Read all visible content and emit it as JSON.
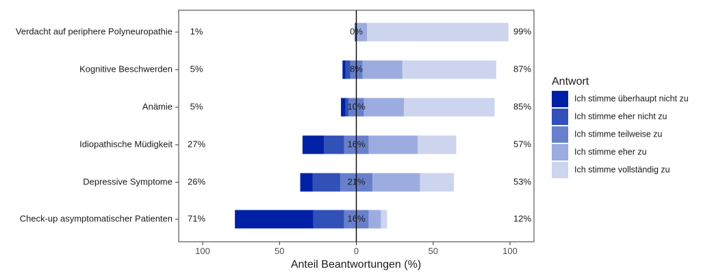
{
  "chart_data": {
    "type": "bar",
    "orientation": "horizontal-diverging",
    "xlabel": "Anteil Beantwortungen (%)",
    "x_ticks": [
      "100",
      "50",
      "0",
      "50",
      "100"
    ],
    "x_tick_values": [
      -100,
      -50,
      0,
      50,
      100
    ],
    "xlim": [
      -115,
      115
    ],
    "legend": {
      "title": "Antwort",
      "position": "right",
      "entries": [
        {
          "name": "Ich stimme überhaupt nicht zu",
          "color": "#0021a5"
        },
        {
          "name": "Ich stimme eher nicht zu",
          "color": "#3151b8"
        },
        {
          "name": "Ich stimme teilweise zu",
          "color": "#6880cc"
        },
        {
          "name": "Ich stimme eher zu",
          "color": "#9dace0"
        },
        {
          "name": "Ich stimme vollständig zu",
          "color": "#ccd4ee"
        }
      ]
    },
    "categories": [
      "Verdacht auf periphere Polyneuropathie",
      "Kognitive Beschwerden",
      "Anämie",
      "Idiopathische Müdigkeit",
      "Depressive Symptome",
      "Check-up asymptomatischer Patienten"
    ],
    "series": [
      {
        "name": "Ich stimme überhaupt nicht zu",
        "values": [
          0,
          2,
          3,
          14,
          8,
          51
        ]
      },
      {
        "name": "Ich stimme eher nicht zu",
        "values": [
          1,
          3,
          2,
          13,
          18,
          20
        ]
      },
      {
        "name": "Ich stimme teilweise zu",
        "values": [
          0,
          8,
          10,
          16,
          21,
          16
        ]
      },
      {
        "name": "Ich stimme eher zu",
        "values": [
          7,
          26,
          26,
          32,
          31,
          8
        ]
      },
      {
        "name": "Ich stimme vollständig zu",
        "values": [
          92,
          61,
          59,
          25,
          22,
          4
        ]
      }
    ],
    "left_labels": [
      "1%",
      "5%",
      "5%",
      "27%",
      "26%",
      "71%"
    ],
    "center_labels": [
      "0%",
      "8%",
      "10%",
      "16%",
      "21%",
      "16%"
    ],
    "right_labels": [
      "99%",
      "87%",
      "85%",
      "57%",
      "53%",
      "12%"
    ],
    "grid": false
  }
}
